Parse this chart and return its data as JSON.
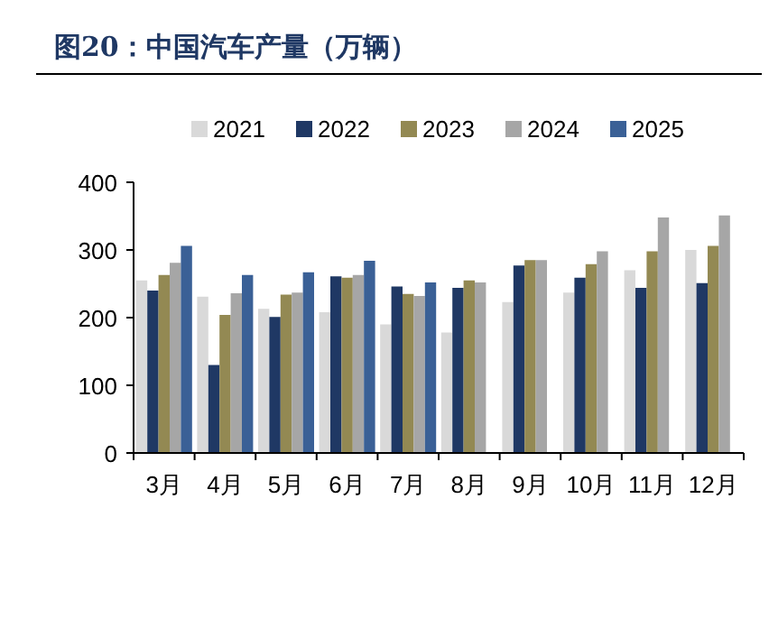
{
  "chart_data": {
    "type": "bar",
    "title": "图20：中国汽车产量（万辆）",
    "categories": [
      "3月",
      "4月",
      "5月",
      "6月",
      "7月",
      "8月",
      "9月",
      "10月",
      "11月",
      "12月"
    ],
    "series": [
      {
        "name": "2021",
        "color": "#d9d9d9",
        "values": [
          255,
          231,
          213,
          208,
          190,
          178,
          223,
          237,
          270,
          300
        ]
      },
      {
        "name": "2022",
        "color": "#1f3864",
        "values": [
          240,
          130,
          201,
          261,
          246,
          244,
          277,
          259,
          244,
          251
        ]
      },
      {
        "name": "2023",
        "color": "#938953",
        "values": [
          263,
          204,
          234,
          259,
          235,
          255,
          285,
          279,
          298,
          306
        ]
      },
      {
        "name": "2024",
        "color": "#a6a6a6",
        "values": [
          281,
          236,
          237,
          263,
          232,
          252,
          285,
          298,
          348,
          351
        ]
      },
      {
        "name": "2025",
        "color": "#3a6096",
        "values": [
          306,
          263,
          267,
          284,
          252,
          null,
          null,
          null,
          null,
          null
        ]
      }
    ],
    "ylim": [
      0,
      400
    ],
    "yticks": [
      0,
      100,
      200,
      300,
      400
    ],
    "grid": false,
    "legend": "top"
  }
}
